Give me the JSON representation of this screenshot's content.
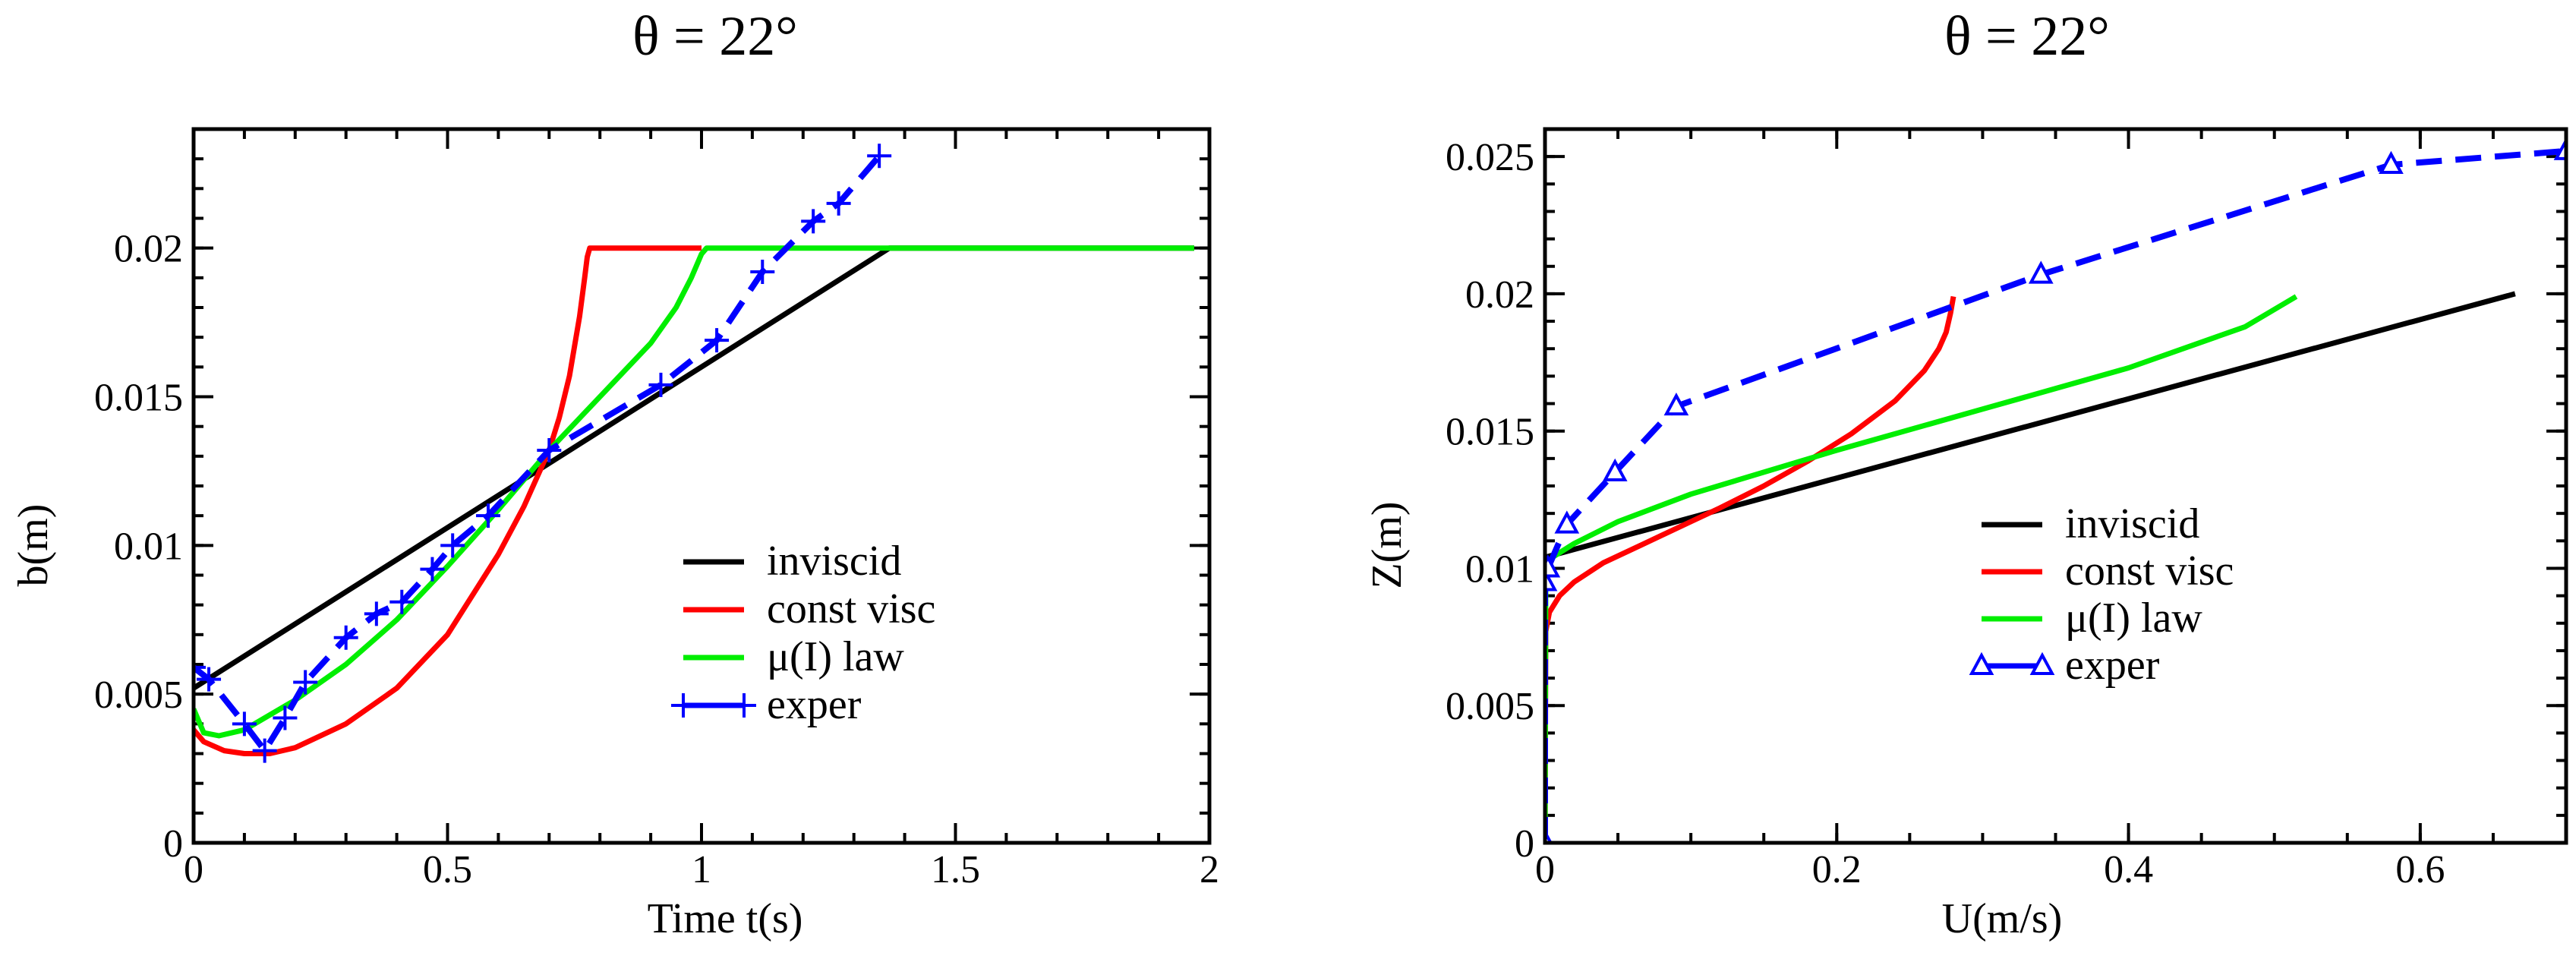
{
  "chart_data": [
    {
      "type": "line",
      "title": "θ = 22°",
      "xlabel": "Time t(s)",
      "ylabel": "b(m)",
      "xlim": [
        0,
        2
      ],
      "ylim": [
        0,
        0.024
      ],
      "xticks": [
        0,
        0.5,
        1,
        1.5,
        2
      ],
      "xtick_labels": [
        "0",
        "0.5",
        "1",
        "1.5",
        "2"
      ],
      "yticks": [
        0,
        0.005,
        0.01,
        0.015,
        0.02
      ],
      "ytick_labels": [
        "0",
        "0.005",
        "0.01",
        "0.015",
        "0.02"
      ],
      "legend_position": "lower-right",
      "series": [
        {
          "name": "inviscid",
          "color": "#000000",
          "style": "solid",
          "marker": "none",
          "x": [
            0,
            1.37,
            1.97
          ],
          "y": [
            0.0052,
            0.02,
            0.02
          ]
        },
        {
          "name": "const visc",
          "color": "#ff0000",
          "style": "solid",
          "marker": "none",
          "x": [
            0,
            0.02,
            0.06,
            0.1,
            0.15,
            0.2,
            0.3,
            0.4,
            0.5,
            0.6,
            0.65,
            0.7,
            0.72,
            0.74,
            0.76,
            0.77,
            0.775,
            0.78,
            0.8,
            1.0
          ],
          "y": [
            0.0038,
            0.0034,
            0.0031,
            0.003,
            0.003,
            0.0032,
            0.004,
            0.0052,
            0.007,
            0.0097,
            0.0113,
            0.0132,
            0.0143,
            0.0157,
            0.0177,
            0.019,
            0.0197,
            0.02,
            0.02,
            0.02
          ]
        },
        {
          "name": "μ(I) law",
          "color": "#00ee00",
          "style": "solid",
          "marker": "none",
          "x": [
            0,
            0.02,
            0.05,
            0.1,
            0.2,
            0.3,
            0.4,
            0.5,
            0.6,
            0.7,
            0.8,
            0.9,
            0.95,
            0.98,
            1.0,
            1.01,
            1.05,
            1.97
          ],
          "y": [
            0.0045,
            0.0037,
            0.0036,
            0.0038,
            0.0048,
            0.006,
            0.0075,
            0.0093,
            0.0112,
            0.0132,
            0.015,
            0.0168,
            0.018,
            0.019,
            0.0198,
            0.02,
            0.02,
            0.02
          ]
        },
        {
          "name": "exper",
          "color": "#0000ff",
          "style": "dashed",
          "marker": "plus",
          "x": [
            0,
            0.03,
            0.1,
            0.14,
            0.18,
            0.22,
            0.3,
            0.36,
            0.41,
            0.47,
            0.51,
            0.58,
            0.7,
            0.92,
            1.03,
            1.12,
            1.22,
            1.27,
            1.35
          ],
          "y": [
            0.0059,
            0.0055,
            0.004,
            0.0031,
            0.0042,
            0.0054,
            0.0069,
            0.0077,
            0.0081,
            0.0092,
            0.01,
            0.011,
            0.0132,
            0.0154,
            0.0169,
            0.0192,
            0.0209,
            0.0215,
            0.0231
          ]
        }
      ]
    },
    {
      "type": "line",
      "title": "θ = 22°",
      "xlabel": "U(m/s)",
      "ylabel": "Z(m)",
      "xlim": [
        0,
        0.7
      ],
      "ylim": [
        0,
        0.026
      ],
      "xticks": [
        0,
        0.2,
        0.4,
        0.6
      ],
      "xtick_labels": [
        "0",
        "0.2",
        "0.4",
        "0.6"
      ],
      "yticks": [
        0,
        0.005,
        0.01,
        0.015,
        0.02,
        0.025
      ],
      "ytick_labels": [
        "0",
        "0.005",
        "0.01",
        "0.015",
        "0.02",
        "0.025"
      ],
      "legend_position": "lower-right",
      "series": [
        {
          "name": "inviscid",
          "color": "#000000",
          "style": "solid",
          "marker": "none",
          "x": [
            0,
            0,
            0.665
          ],
          "y": [
            0,
            0.0104,
            0.02
          ]
        },
        {
          "name": "const visc",
          "color": "#ff0000",
          "style": "solid",
          "marker": "none",
          "x": [
            0,
            0.0005,
            0.003,
            0.01,
            0.02,
            0.04,
            0.06,
            0.08,
            0.1,
            0.12,
            0.15,
            0.18,
            0.21,
            0.24,
            0.26,
            0.27,
            0.275,
            0.278,
            0.28
          ],
          "y": [
            0,
            0.0077,
            0.0084,
            0.009,
            0.0095,
            0.0102,
            0.0107,
            0.0112,
            0.0117,
            0.0122,
            0.013,
            0.0139,
            0.0149,
            0.0161,
            0.0172,
            0.018,
            0.0186,
            0.0193,
            0.0199
          ]
        },
        {
          "name": "μ(I) law",
          "color": "#00ee00",
          "style": "solid",
          "marker": "none",
          "x": [
            0,
            0.0005,
            0.005,
            0.02,
            0.05,
            0.1,
            0.15,
            0.2,
            0.3,
            0.4,
            0.48,
            0.515
          ],
          "y": [
            0,
            0.0098,
            0.0104,
            0.0109,
            0.0117,
            0.0127,
            0.0135,
            0.0143,
            0.0158,
            0.0173,
            0.0188,
            0.0199
          ]
        },
        {
          "name": "exper",
          "color": "#0000ff",
          "style": "dashed",
          "marker": "triangle",
          "x": [
            0,
            0,
            0.002,
            0.015,
            0.048,
            0.09,
            0.34,
            0.58,
            0.7
          ],
          "y": [
            0,
            0.0095,
            0.01,
            0.0116,
            0.0135,
            0.0159,
            0.0207,
            0.0247,
            0.0252
          ]
        }
      ]
    }
  ]
}
